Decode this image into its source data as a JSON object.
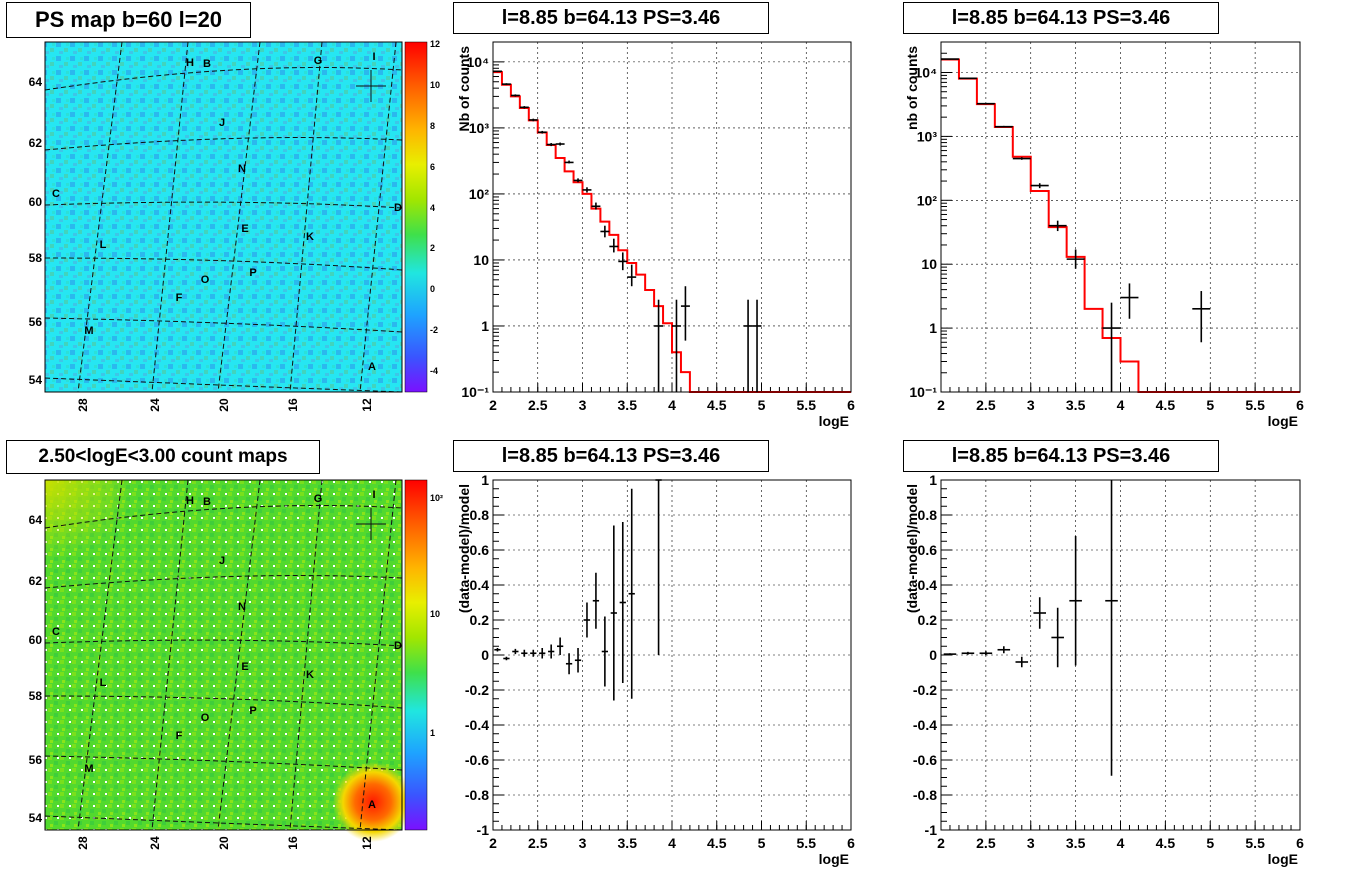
{
  "titles": {
    "tl": "PS map b=60 l=20",
    "bl": "2.50<logE<3.00 count maps",
    "tm": "l=8.85 b=64.13 PS=3.46",
    "tr": "l=8.85 b=64.13 PS=3.46",
    "bm": "l=8.85 b=64.13 PS=3.46",
    "br": "l=8.85 b=64.13 PS=3.46"
  },
  "maps": {
    "x_ticks": [
      "28",
      "24",
      "20",
      "16",
      "12"
    ],
    "y_ticks": [
      "54",
      "56",
      "58",
      "60",
      "62",
      "64"
    ],
    "sources": [
      "H",
      "B",
      "G",
      "I",
      "J",
      "N",
      "C",
      "D",
      "E",
      "K",
      "L",
      "P",
      "O",
      "F",
      "M",
      "A"
    ],
    "ps_colorbar": [
      "12",
      "10",
      "8",
      "6",
      "4",
      "2",
      "0",
      "-2",
      "-4"
    ],
    "count_colorbar": [
      "10²",
      "10",
      "1"
    ]
  },
  "chart_data": [
    {
      "type": "line",
      "title": "l=8.85 b=64.13 PS=3.46",
      "xlabel": "logE",
      "ylabel": "Nb of counts",
      "xlim": [
        2,
        6
      ],
      "ylim": [
        0.1,
        20000
      ],
      "yscale": "log",
      "grid": true,
      "x_ticks": [
        "2",
        "2.5",
        "3",
        "3.5",
        "4",
        "4.5",
        "5",
        "5.5",
        "6"
      ],
      "y_ticks": [
        "10⁴",
        "10³",
        "10²",
        "10",
        "1",
        "10⁻¹"
      ],
      "series": [
        {
          "kind": "model-step",
          "bin_edges": [
            2.0,
            2.1,
            2.2,
            2.3,
            2.4,
            2.5,
            2.6,
            2.7,
            2.8,
            2.9,
            3.0,
            3.1,
            3.2,
            3.3,
            3.4,
            3.5,
            3.6,
            3.7,
            3.8,
            3.9,
            4.0,
            4.1,
            4.2,
            6.0
          ],
          "values": [
            7000,
            4500,
            3000,
            2000,
            1300,
            850,
            550,
            350,
            220,
            150,
            100,
            60,
            38,
            24,
            14,
            9,
            6,
            3.5,
            2,
            1.1,
            0.4,
            0.2,
            0.1
          ]
        },
        {
          "kind": "data-points",
          "x": [
            2.05,
            2.15,
            2.25,
            2.35,
            2.45,
            2.55,
            2.65,
            2.75,
            2.85,
            2.95,
            3.05,
            3.15,
            3.25,
            3.35,
            3.45,
            3.55,
            3.85,
            4.05,
            4.15,
            4.85,
            4.95
          ],
          "y": [
            7200,
            4600,
            3100,
            2050,
            1320,
            860,
            560,
            570,
            300,
            160,
            115,
            65,
            27,
            16,
            9.5,
            5.5,
            1,
            1,
            2,
            1,
            1
          ],
          "ylow": [
            7000,
            4450,
            2980,
            1960,
            1260,
            820,
            530,
            540,
            290,
            150,
            105,
            58,
            22,
            13,
            7,
            4,
            0.1,
            0.1,
            0.6,
            0.1,
            0.1
          ],
          "yhigh": [
            7400,
            4750,
            3220,
            2140,
            1380,
            900,
            590,
            600,
            320,
            172,
            126,
            74,
            33,
            21,
            13,
            8.5,
            2.5,
            2.5,
            4,
            2.5,
            2.5
          ]
        }
      ]
    },
    {
      "type": "line",
      "title": "l=8.85 b=64.13 PS=3.46",
      "xlabel": "logE",
      "ylabel": "nb of counts",
      "xlim": [
        2,
        6
      ],
      "ylim": [
        0.1,
        30000
      ],
      "yscale": "log",
      "grid": true,
      "x_ticks": [
        "2",
        "2.5",
        "3",
        "3.5",
        "4",
        "4.5",
        "5",
        "5.5",
        "6"
      ],
      "y_ticks": [
        "10⁴",
        "10³",
        "10²",
        "10",
        "1",
        "10⁻¹"
      ],
      "series": [
        {
          "kind": "model-step",
          "bin_edges": [
            2.0,
            2.2,
            2.4,
            2.6,
            2.8,
            3.0,
            3.2,
            3.4,
            3.6,
            3.8,
            4.0,
            4.2,
            6.0
          ],
          "values": [
            16000,
            8000,
            3200,
            1400,
            480,
            140,
            38,
            13,
            2,
            0.7,
            0.3,
            0.1
          ]
        },
        {
          "kind": "data-points",
          "x": [
            2.1,
            2.3,
            2.5,
            2.7,
            2.9,
            3.1,
            3.3,
            3.5,
            3.9,
            4.1,
            4.9
          ],
          "y": [
            16200,
            8100,
            3250,
            1420,
            450,
            170,
            40,
            12,
            1,
            3,
            2
          ],
          "ylow": [
            15900,
            7950,
            3180,
            1380,
            430,
            155,
            33,
            8.5,
            0.1,
            1.4,
            0.6
          ],
          "yhigh": [
            16500,
            8250,
            3320,
            1460,
            472,
            185,
            48,
            17,
            2.5,
            5,
            3.8
          ]
        }
      ]
    },
    {
      "type": "scatter",
      "title": "l=8.85 b=64.13 PS=3.46",
      "xlabel": "logE",
      "ylabel": "(data-model)/model",
      "xlim": [
        2,
        6
      ],
      "ylim": [
        -1,
        1
      ],
      "grid": true,
      "x_ticks": [
        "2",
        "2.5",
        "3",
        "3.5",
        "4",
        "4.5",
        "5",
        "5.5",
        "6"
      ],
      "y_ticks": [
        "1",
        "0.8",
        "0.6",
        "0.4",
        "0.2",
        "0",
        "-0.2",
        "-0.4",
        "-0.6",
        "-0.8",
        "-1"
      ],
      "series": [
        {
          "kind": "residuals",
          "x": [
            2.05,
            2.15,
            2.25,
            2.35,
            2.45,
            2.55,
            2.65,
            2.75,
            2.85,
            2.95,
            3.05,
            3.15,
            3.25,
            3.35,
            3.45,
            3.55,
            3.85
          ],
          "y": [
            0.03,
            -0.02,
            0.02,
            0.01,
            0.01,
            0.01,
            0.02,
            0.05,
            -0.05,
            -0.03,
            0.2,
            0.31,
            0.02,
            0.24,
            0.3,
            0.35,
            1.0
          ],
          "err": [
            0.01,
            0.01,
            0.015,
            0.02,
            0.02,
            0.03,
            0.04,
            0.05,
            0.06,
            0.07,
            0.1,
            0.16,
            0.2,
            0.5,
            0.46,
            0.6,
            1.0
          ]
        }
      ]
    },
    {
      "type": "scatter",
      "title": "l=8.85 b=64.13 PS=3.46",
      "xlabel": "logE",
      "ylabel": "(data-model)/model",
      "xlim": [
        2,
        6
      ],
      "ylim": [
        -1,
        1
      ],
      "grid": true,
      "x_ticks": [
        "2",
        "2.5",
        "3",
        "3.5",
        "4",
        "4.5",
        "5",
        "5.5",
        "6"
      ],
      "y_ticks": [
        "1",
        "0.8",
        "0.6",
        "0.4",
        "0.2",
        "0",
        "-0.2",
        "-0.4",
        "-0.6",
        "-0.8",
        "-1"
      ],
      "series": [
        {
          "kind": "residuals",
          "x": [
            2.1,
            2.3,
            2.5,
            2.7,
            2.9,
            3.1,
            3.3,
            3.5,
            3.9
          ],
          "y": [
            0.005,
            0.01,
            0.01,
            0.03,
            -0.04,
            0.24,
            0.1,
            0.31,
            0.31
          ],
          "err": [
            0.005,
            0.008,
            0.012,
            0.02,
            0.03,
            0.09,
            0.17,
            0.37,
            1.0
          ]
        }
      ]
    }
  ]
}
